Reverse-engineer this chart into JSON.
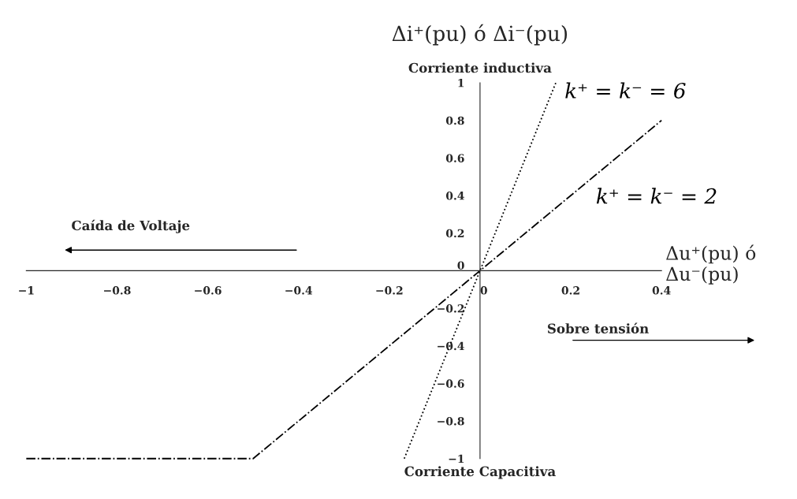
{
  "chart_data": {
    "type": "line",
    "ylabel": "Δi⁺(pu) ó Δi⁻(pu)",
    "xlabel": "Δu⁺(pu) ó Δu⁻(pu)",
    "series": [
      {
        "name": "k⁺ = k⁻ = 6",
        "color": "#000000",
        "line_style": "dotted",
        "x": [
          -0.167,
          0.167
        ],
        "values": [
          -1,
          1
        ]
      },
      {
        "name": "k⁺ = k⁻ = 2",
        "color": "#000000",
        "line_style": "dashdot",
        "x": [
          -1,
          -0.5,
          0.4
        ],
        "values": [
          -1,
          -1,
          0.8
        ]
      }
    ],
    "xlim": [
      -1,
      0.4
    ],
    "ylim": [
      -1,
      1
    ],
    "xticks": [
      {
        "value": -1,
        "label": "−1"
      },
      {
        "value": -0.8,
        "label": "−0.8"
      },
      {
        "value": -0.6,
        "label": "−0.6"
      },
      {
        "value": -0.4,
        "label": "−0.4"
      },
      {
        "value": -0.2,
        "label": "−0.2"
      },
      0,
      0.2,
      0.4
    ],
    "yticks": [
      {
        "value": -1,
        "label": "−1"
      },
      {
        "value": -0.8,
        "label": "−0.8"
      },
      {
        "value": -0.6,
        "label": "−0.6"
      },
      {
        "value": -0.4,
        "label": "−0.4"
      },
      {
        "value": -0.2,
        "label": "−0.2"
      },
      0,
      0.2,
      0.4,
      0.6,
      0.8,
      1
    ],
    "annotations": [
      "Corriente inductiva",
      "Corriente Capacitiva",
      "Caída de Voltaje",
      "Sobre tensión"
    ],
    "grid": false,
    "legend": false,
    "marker": "none"
  }
}
